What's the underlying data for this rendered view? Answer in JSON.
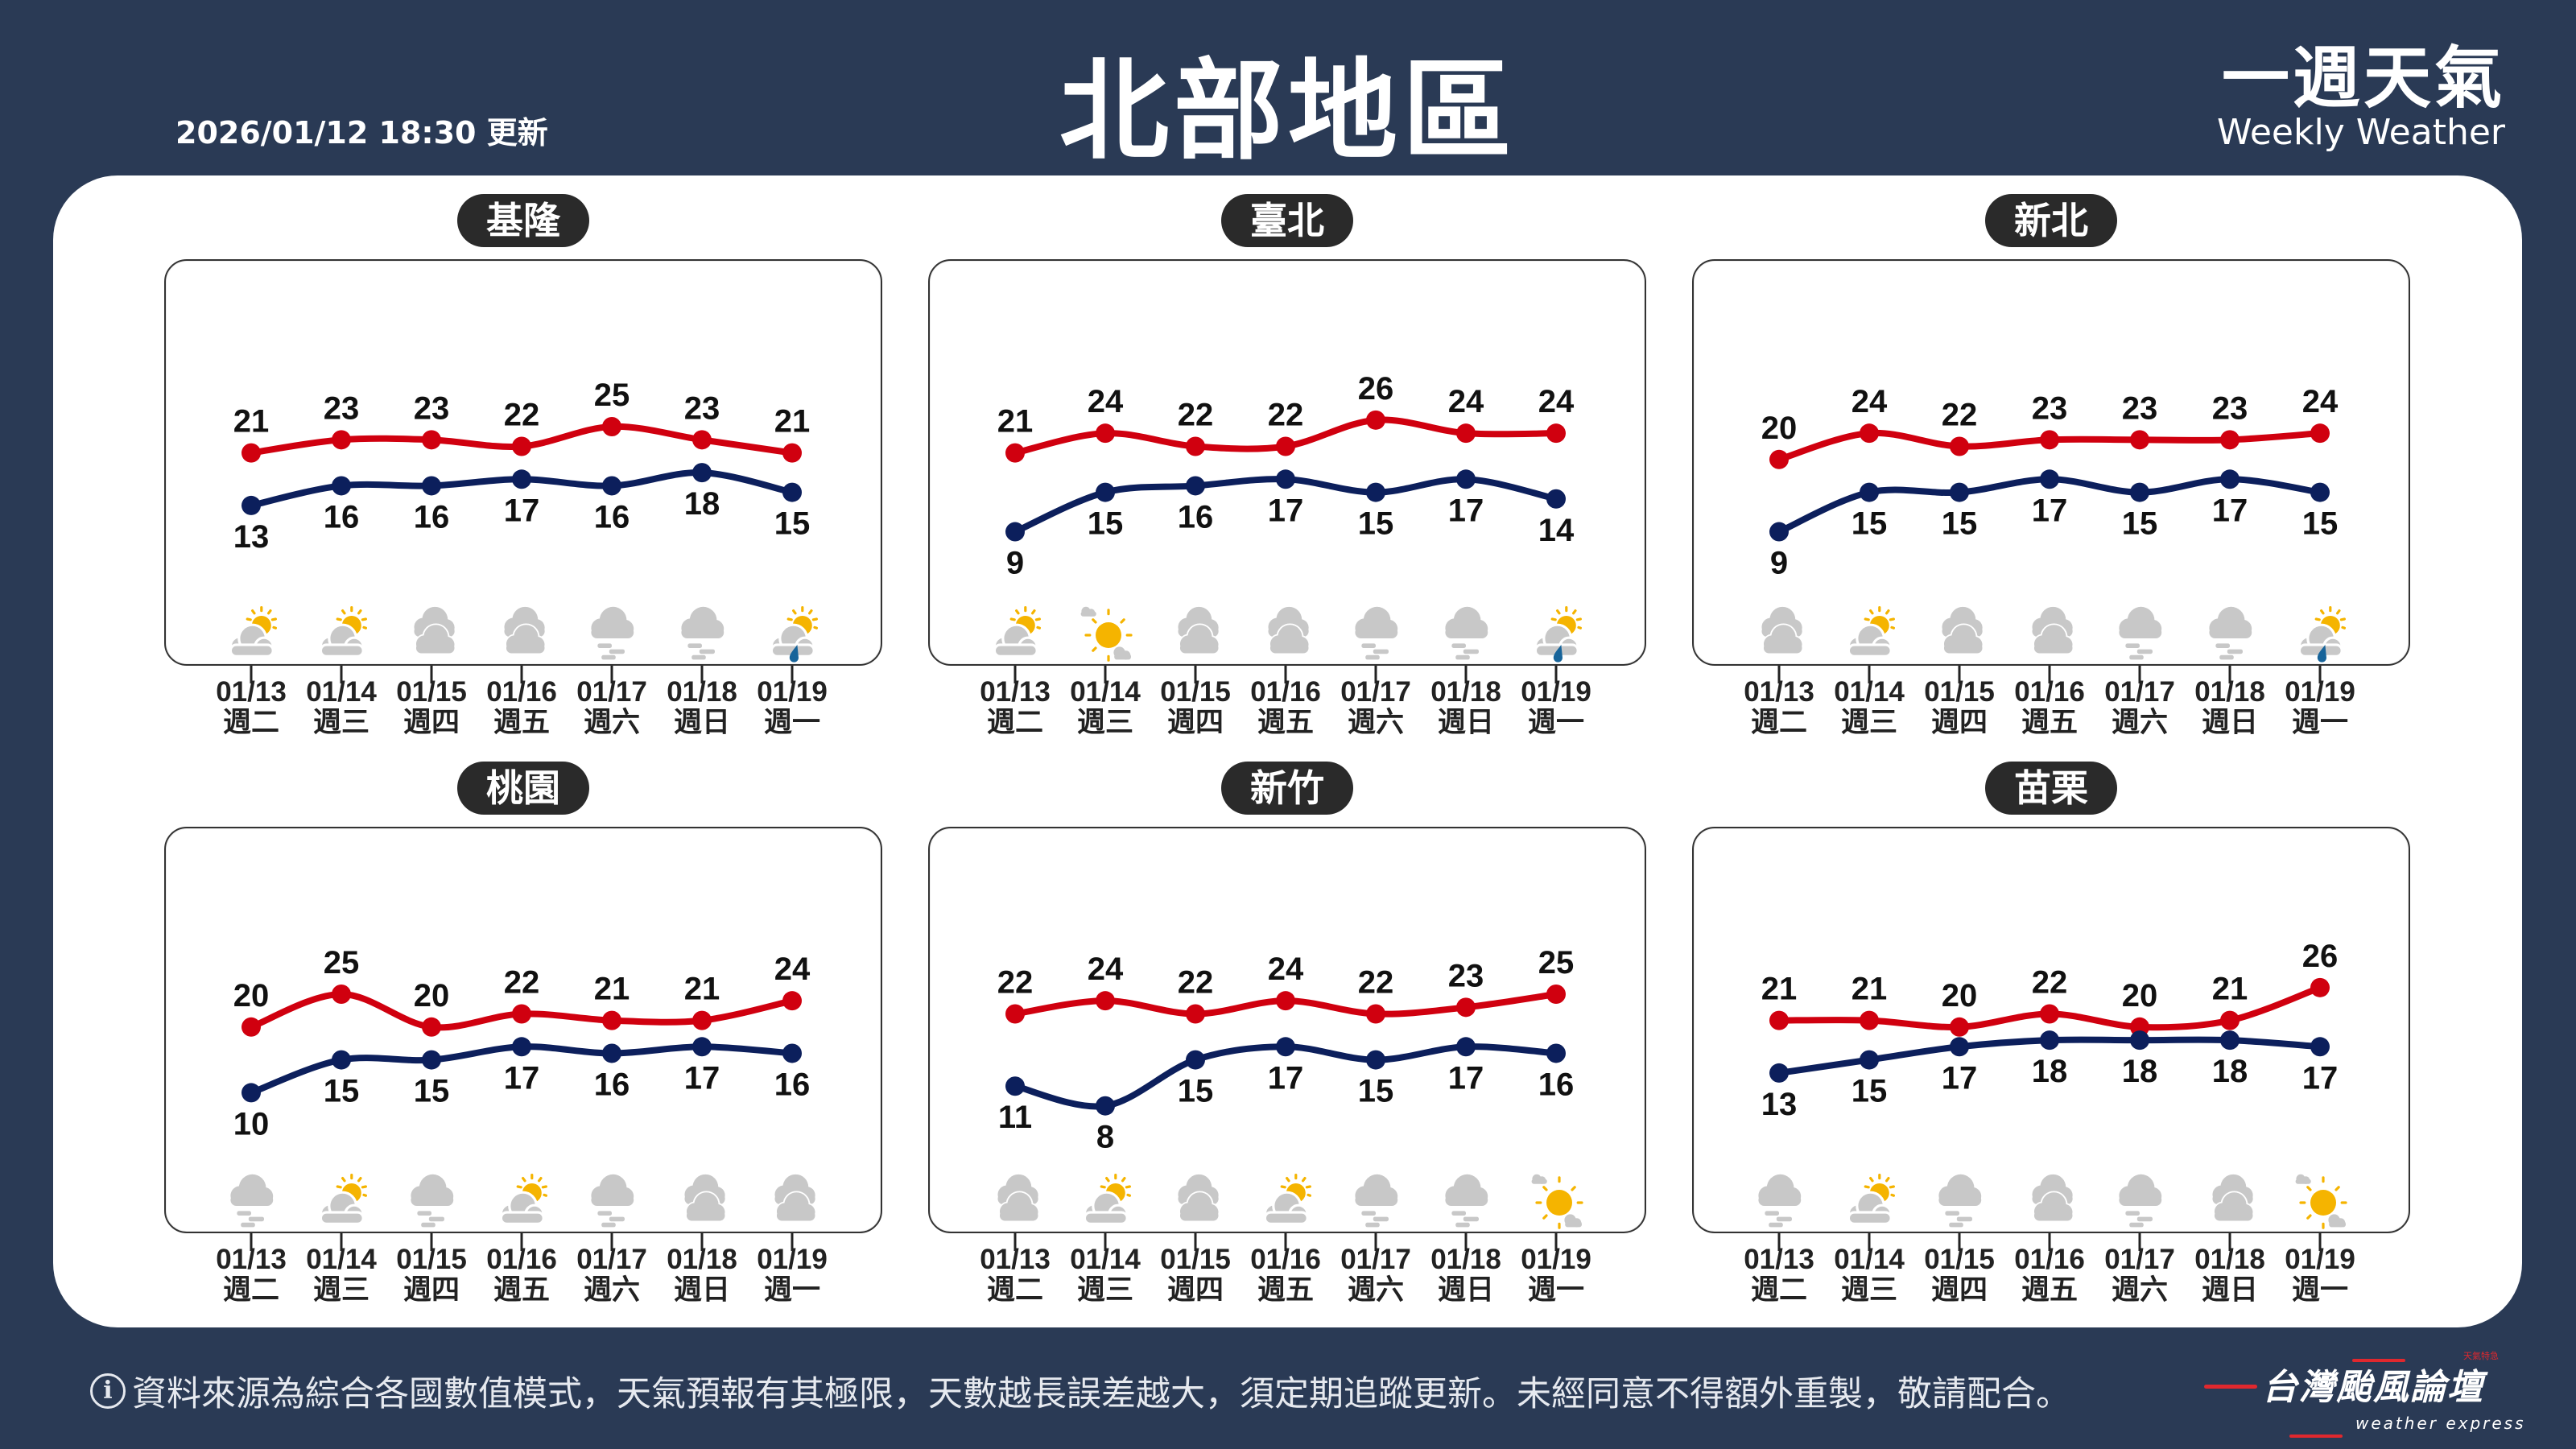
{
  "header": {
    "title": "北部地區",
    "updated": "2026/01/12 18:30 更新",
    "brand_zh": "一週天氣",
    "brand_en": "Weekly Weather"
  },
  "colors": {
    "high": "#d0000f",
    "low": "#0c1f5c",
    "background": "#2a3a55",
    "sun": "#f5b400",
    "cloud": "#c8c8c8",
    "rain": "#17649a"
  },
  "dates": [
    "01/13",
    "01/14",
    "01/15",
    "01/16",
    "01/17",
    "01/18",
    "01/19"
  ],
  "weekdays": [
    "週二",
    "週三",
    "週四",
    "週五",
    "週六",
    "週日",
    "週一"
  ],
  "regions": [
    {
      "name": "基隆",
      "highs": [
        21,
        23,
        23,
        22,
        25,
        23,
        21
      ],
      "lows": [
        13,
        16,
        16,
        17,
        16,
        18,
        15
      ],
      "icons": [
        "partly-cloudy",
        "partly-cloudy",
        "cloudy",
        "cloudy",
        "fog",
        "fog",
        "rain-sun"
      ]
    },
    {
      "name": "臺北",
      "highs": [
        21,
        24,
        22,
        22,
        26,
        24,
        24
      ],
      "lows": [
        9,
        15,
        16,
        17,
        15,
        17,
        14
      ],
      "icons": [
        "partly-cloudy",
        "sunny",
        "cloudy",
        "cloudy",
        "fog",
        "fog",
        "rain-sun"
      ]
    },
    {
      "name": "新北",
      "highs": [
        20,
        24,
        22,
        23,
        23,
        23,
        24
      ],
      "lows": [
        9,
        15,
        15,
        17,
        15,
        17,
        15
      ],
      "icons": [
        "cloudy",
        "partly-cloudy",
        "cloudy",
        "cloudy",
        "fog",
        "fog",
        "rain-sun"
      ]
    },
    {
      "name": "桃園",
      "highs": [
        20,
        25,
        20,
        22,
        21,
        21,
        24
      ],
      "lows": [
        10,
        15,
        15,
        17,
        16,
        17,
        16
      ],
      "icons": [
        "fog",
        "partly-cloudy",
        "fog",
        "partly-cloudy",
        "fog",
        "cloudy",
        "cloudy"
      ]
    },
    {
      "name": "新竹",
      "highs": [
        22,
        24,
        22,
        24,
        22,
        23,
        25
      ],
      "lows": [
        11,
        8,
        15,
        17,
        15,
        17,
        16
      ],
      "icons": [
        "cloudy",
        "partly-cloudy",
        "cloudy",
        "partly-cloudy",
        "fog",
        "fog",
        "sunny"
      ]
    },
    {
      "name": "苗栗",
      "highs": [
        21,
        21,
        20,
        22,
        20,
        21,
        26
      ],
      "lows": [
        13,
        15,
        17,
        18,
        18,
        18,
        17
      ],
      "icons": [
        "fog",
        "partly-cloudy",
        "fog",
        "cloudy",
        "fog",
        "cloudy",
        "sunny"
      ]
    }
  ],
  "footer": {
    "icon": "info-icon",
    "info_glyph": "i",
    "disclaimer": "資料來源為綜合各國數值模式，天氣預報有其極限，天數越長誤差越大，須定期追蹤更新。未經同意不得額外重製，敬請配合。"
  },
  "logo": {
    "zh": "台灣颱風論壇",
    "en": "weather express",
    "tag": "天氣特急"
  }
}
